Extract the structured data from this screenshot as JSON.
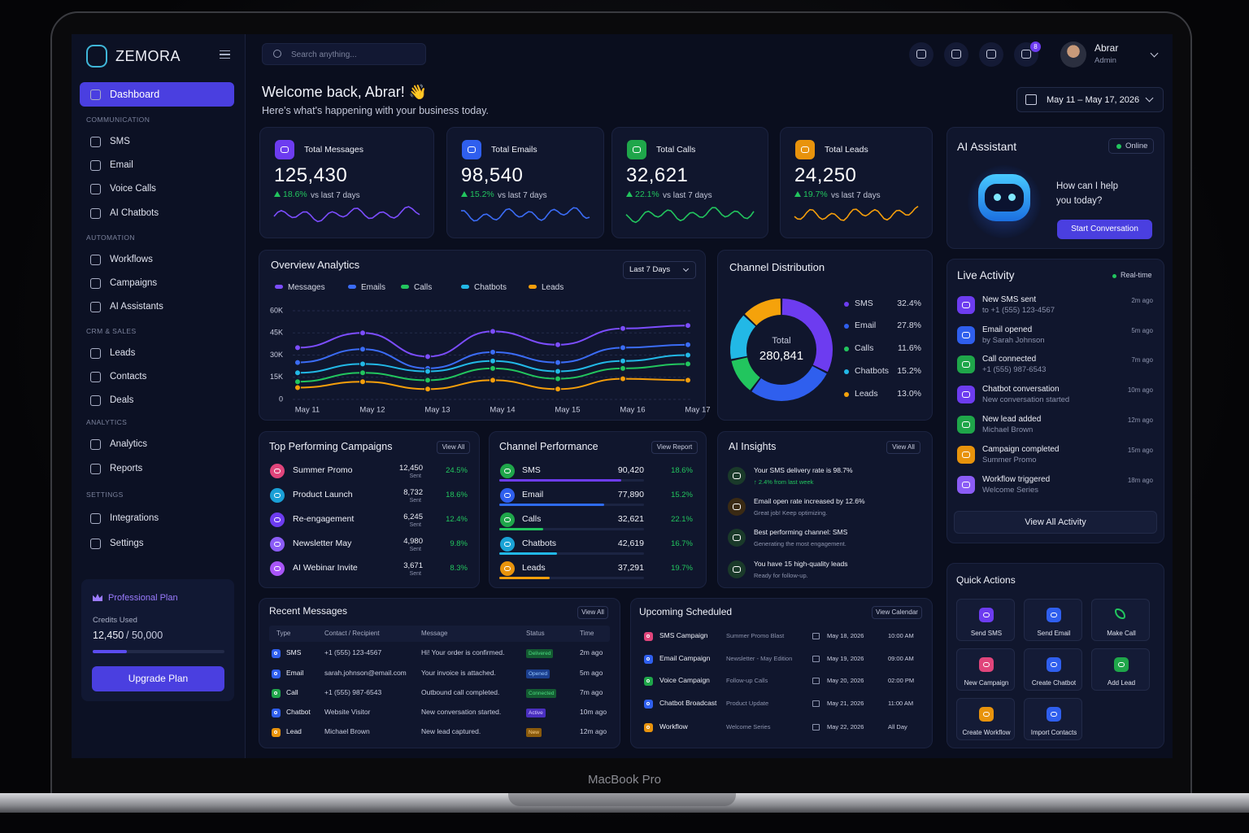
{
  "device_label": "MacBook Pro",
  "sidebar": {
    "brand": "ZEMORA",
    "active": "Dashboard",
    "sections": [
      {
        "title": "COMMUNICATION",
        "items": [
          "SMS",
          "Email",
          "Voice Calls",
          "AI Chatbots"
        ]
      },
      {
        "title": "AUTOMATION",
        "items": [
          "Workflows",
          "Campaigns",
          "AI Assistants"
        ]
      },
      {
        "title": "CRM & SALES",
        "items": [
          "Leads",
          "Contacts",
          "Deals"
        ]
      },
      {
        "title": "ANALYTICS",
        "items": [
          "Analytics",
          "Reports"
        ]
      },
      {
        "title": "SETTINGS",
        "items": [
          "Integrations",
          "Settings"
        ]
      }
    ],
    "plan": {
      "title": "Professional Plan",
      "credits_label": "Credits Used",
      "credits_used": "12,450",
      "credits_total": "/ 50,000",
      "button": "Upgrade Plan"
    }
  },
  "topbar": {
    "search": "Search anything...",
    "notifications": "8",
    "user_name": "Abrar",
    "user_role": "Admin"
  },
  "header": {
    "title": "Welcome back, Abrar! 👋",
    "subtitle": "Here's what's happening with your business today.",
    "date_range": "May 11 – May 17, 2026"
  },
  "stats": [
    {
      "label": "Total Messages",
      "value": "125,430",
      "change": "18.6%",
      "period": "vs last 7 days"
    },
    {
      "label": "Total Emails",
      "value": "98,540",
      "change": "15.2%",
      "period": "vs last 7 days"
    },
    {
      "label": "Total Calls",
      "value": "32,621",
      "change": "22.1%",
      "period": "vs last 7 days"
    },
    {
      "label": "Total Leads",
      "value": "24,250",
      "change": "19.7%",
      "period": "vs last 7 days"
    }
  ],
  "assistant": {
    "title": "AI Assistant",
    "status": "Online",
    "prompt": "How can I help you today?",
    "button": "Start Conversation"
  },
  "chart_data": [
    {
      "type": "line",
      "title": "Overview Analytics",
      "filter": "Last 7 Days",
      "categories": [
        "May 11",
        "May 12",
        "May 13",
        "May 14",
        "May 15",
        "May 16",
        "May 17"
      ],
      "series": [
        {
          "name": "Messages",
          "color": "#7c4dff",
          "values": [
            35000,
            45000,
            29000,
            46000,
            37000,
            48000,
            50000
          ]
        },
        {
          "name": "Emails",
          "color": "#3b6cf6",
          "values": [
            25000,
            34000,
            21000,
            32000,
            25000,
            35000,
            37000
          ]
        },
        {
          "name": "Calls",
          "color": "#22c55e",
          "values": [
            12000,
            18000,
            13000,
            21000,
            14000,
            21000,
            24000
          ]
        },
        {
          "name": "Chatbots",
          "color": "#22b8e6",
          "values": [
            18000,
            24000,
            19000,
            26000,
            19000,
            26000,
            30000
          ]
        },
        {
          "name": "Leads",
          "color": "#f59e0b",
          "values": [
            8000,
            12000,
            7000,
            13000,
            7000,
            14000,
            13000
          ]
        }
      ],
      "ylim": [
        0,
        60000
      ],
      "yticks": [
        0,
        {
          "value": 15000,
          "label": "15K"
        },
        {
          "value": 30000,
          "label": "30K"
        },
        {
          "value": 45000,
          "label": "45K"
        },
        {
          "value": 60000,
          "label": "60K"
        }
      ],
      "grid": true
    },
    {
      "type": "pie",
      "title": "Channel Distribution",
      "center_label": "Total",
      "center_value": "280,841",
      "categories": [
        "SMS",
        "Email",
        "Calls",
        "Chatbots",
        "Leads"
      ],
      "values": [
        32.4,
        27.8,
        11.6,
        15.2,
        13.0
      ],
      "value_labels": [
        "32.4%",
        "27.8%",
        "11.6%",
        "15.2%",
        "13.0%"
      ],
      "colors": [
        "#6d3cf0",
        "#2f5fee",
        "#22c55e",
        "#22b8e6",
        "#f5a20b"
      ]
    }
  ],
  "campaigns": {
    "title": "Top Performing Campaigns",
    "action": "View All",
    "rows": [
      {
        "name": "Summer Promo",
        "sent": "12,450",
        "sent_label": "Sent",
        "change": "24.5%"
      },
      {
        "name": "Product Launch",
        "sent": "8,732",
        "sent_label": "Sent",
        "change": "18.6%"
      },
      {
        "name": "Re-engagement",
        "sent": "6,245",
        "sent_label": "Sent",
        "change": "12.4%"
      },
      {
        "name": "Newsletter May",
        "sent": "4,980",
        "sent_label": "Sent",
        "change": "9.8%"
      },
      {
        "name": "AI Webinar Invite",
        "sent": "3,671",
        "sent_label": "Sent",
        "change": "8.3%"
      }
    ]
  },
  "channels": {
    "title": "Channel Performance",
    "action": "View Report",
    "names": [
      "SMS",
      "Email",
      "Calls",
      "Chatbots",
      "Leads"
    ],
    "values": [
      90420,
      77890,
      32621,
      42619,
      37291
    ],
    "value_labels": [
      "90,420",
      "77,890",
      "32,621",
      "42,619",
      "37,291"
    ],
    "changes": [
      "18.6%",
      "15.2%",
      "22.1%",
      "16.7%",
      "19.7%"
    ]
  },
  "insights": {
    "title": "AI Insights",
    "action": "View All",
    "items": [
      {
        "title": "Your SMS delivery rate is 98.7%",
        "detail": "↑ 2.4% from last week"
      },
      {
        "title": "Email open rate increased by 12.6%",
        "detail": "Great job! Keep optimizing."
      },
      {
        "title": "Best performing channel: SMS",
        "detail": "Generating the most engagement."
      },
      {
        "title": "You have 15 high-quality leads",
        "detail": "Ready for follow-up."
      }
    ]
  },
  "live_activity": {
    "title": "Live Activity",
    "status": "Real-time",
    "button": "View All Activity",
    "items": [
      {
        "title": "New SMS sent",
        "detail": "to +1 (555) 123-4567",
        "time": "2m ago"
      },
      {
        "title": "Email opened",
        "detail": "by Sarah Johnson",
        "time": "5m ago"
      },
      {
        "title": "Call connected",
        "detail": "+1 (555) 987-6543",
        "time": "7m ago"
      },
      {
        "title": "Chatbot conversation",
        "detail": "New conversation started",
        "time": "10m ago"
      },
      {
        "title": "New lead added",
        "detail": "Michael Brown",
        "time": "12m ago"
      },
      {
        "title": "Campaign completed",
        "detail": "Summer Promo",
        "time": "15m ago"
      },
      {
        "title": "Workflow triggered",
        "detail": "Welcome Series",
        "time": "18m ago"
      }
    ]
  },
  "recent_messages": {
    "title": "Recent Messages",
    "action": "View All",
    "columns": [
      "Type",
      "Contact / Recipient",
      "Message",
      "Status",
      "Time"
    ],
    "rows": [
      [
        "SMS",
        "+1 (555) 123-4567",
        "Hi! Your order is confirmed.",
        "Delivered",
        "2m ago"
      ],
      [
        "Email",
        "sarah.johnson@email.com",
        "Your invoice is attached.",
        "Opened",
        "5m ago"
      ],
      [
        "Call",
        "+1 (555) 987-6543",
        "Outbound call completed.",
        "Connected",
        "7m ago"
      ],
      [
        "Chatbot",
        "Website Visitor",
        "New conversation started.",
        "Active",
        "10m ago"
      ],
      [
        "Lead",
        "Michael Brown",
        "New lead captured.",
        "New",
        "12m ago"
      ]
    ]
  },
  "scheduled": {
    "title": "Upcoming Scheduled",
    "action": "View Calendar",
    "rows": [
      [
        "SMS Campaign",
        "Summer Promo Blast",
        "May 18, 2026",
        "10:00 AM"
      ],
      [
        "Email Campaign",
        "Newsletter - May Edition",
        "May 19, 2026",
        "09:00 AM"
      ],
      [
        "Voice Campaign",
        "Follow-up Calls",
        "May 20, 2026",
        "02:00 PM"
      ],
      [
        "Chatbot Broadcast",
        "Product Update",
        "May 21, 2026",
        "11:00 AM"
      ],
      [
        "Workflow",
        "Welcome Series",
        "May 22, 2026",
        "All Day"
      ]
    ]
  },
  "quick_actions": {
    "title": "Quick Actions",
    "items": [
      "Send SMS",
      "Send Email",
      "Make Call",
      "New Campaign",
      "Create Chatbot",
      "Add Lead",
      "Create Workflow",
      "Import Contacts"
    ]
  }
}
